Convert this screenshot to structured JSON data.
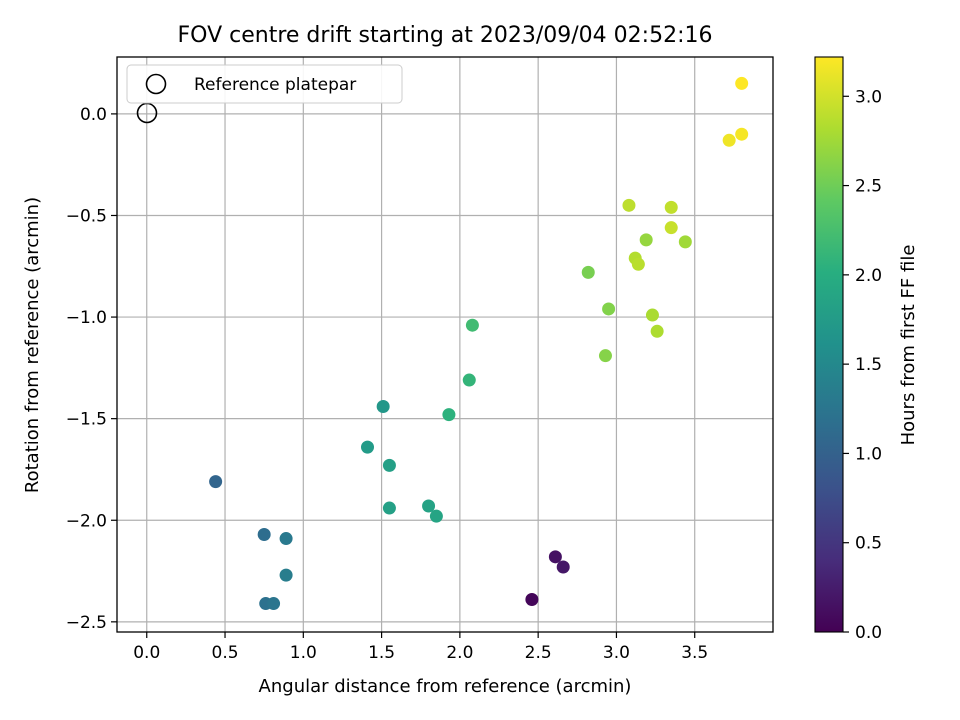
{
  "chart_data": {
    "type": "scatter",
    "title": "FOV centre drift starting at 2023/09/04 02:52:16",
    "xlabel": "Angular distance from reference (arcmin)",
    "ylabel": "Rotation from reference (arcmin)",
    "xlim": [
      -0.19,
      4.0
    ],
    "ylim": [
      -2.55,
      0.28
    ],
    "grid": true,
    "x_ticks": [
      0.0,
      0.5,
      1.0,
      1.5,
      2.0,
      2.5,
      3.0,
      3.5
    ],
    "x_tick_labels": [
      "0.0",
      "0.5",
      "1.0",
      "1.5",
      "2.0",
      "2.5",
      "3.0",
      "3.5"
    ],
    "y_ticks": [
      0.0,
      -0.5,
      -1.0,
      -1.5,
      -2.0,
      -2.5
    ],
    "y_tick_labels": [
      "0.0",
      "−0.5",
      "−1.0",
      "−1.5",
      "−2.0",
      "−2.5"
    ],
    "legend": {
      "location": "upper left",
      "entries": [
        {
          "label": "Reference platepar",
          "marker": "open-circle"
        }
      ]
    },
    "reference_point": {
      "x": 0.0,
      "y": 0.0
    },
    "colorbar": {
      "label": "Hours from first FF file",
      "colormap": "viridis",
      "range": [
        0.0,
        3.22
      ],
      "ticks": [
        0.0,
        0.5,
        1.0,
        1.5,
        2.0,
        2.5,
        3.0
      ],
      "tick_labels": [
        "0.0",
        "0.5",
        "1.0",
        "1.5",
        "2.0",
        "2.5",
        "3.0"
      ]
    },
    "points": [
      {
        "x": 2.46,
        "y": -2.39,
        "hours": 0.05
      },
      {
        "x": 2.61,
        "y": -2.18,
        "hours": 0.15
      },
      {
        "x": 2.66,
        "y": -2.23,
        "hours": 0.2
      },
      {
        "x": 0.44,
        "y": -1.81,
        "hours": 1.05
      },
      {
        "x": 0.75,
        "y": -2.07,
        "hours": 1.15
      },
      {
        "x": 0.76,
        "y": -2.41,
        "hours": 1.2
      },
      {
        "x": 0.81,
        "y": -2.41,
        "hours": 1.25
      },
      {
        "x": 0.89,
        "y": -2.09,
        "hours": 1.3
      },
      {
        "x": 0.89,
        "y": -2.27,
        "hours": 1.35
      },
      {
        "x": 1.51,
        "y": -1.44,
        "hours": 1.7
      },
      {
        "x": 1.41,
        "y": -1.64,
        "hours": 1.75
      },
      {
        "x": 1.55,
        "y": -1.73,
        "hours": 1.8
      },
      {
        "x": 1.55,
        "y": -1.94,
        "hours": 1.82
      },
      {
        "x": 1.8,
        "y": -1.93,
        "hours": 1.85
      },
      {
        "x": 1.85,
        "y": -1.98,
        "hours": 1.88
      },
      {
        "x": 1.93,
        "y": -1.48,
        "hours": 2.05
      },
      {
        "x": 2.06,
        "y": -1.31,
        "hours": 2.1
      },
      {
        "x": 2.08,
        "y": -1.04,
        "hours": 2.2
      },
      {
        "x": 2.82,
        "y": -0.78,
        "hours": 2.55
      },
      {
        "x": 2.95,
        "y": -0.96,
        "hours": 2.6
      },
      {
        "x": 2.93,
        "y": -1.19,
        "hours": 2.62
      },
      {
        "x": 3.19,
        "y": -0.62,
        "hours": 2.7
      },
      {
        "x": 3.44,
        "y": -0.63,
        "hours": 2.75
      },
      {
        "x": 3.23,
        "y": -0.99,
        "hours": 2.8
      },
      {
        "x": 3.26,
        "y": -1.07,
        "hours": 2.82
      },
      {
        "x": 3.12,
        "y": -0.71,
        "hours": 2.85
      },
      {
        "x": 3.14,
        "y": -0.74,
        "hours": 2.88
      },
      {
        "x": 3.08,
        "y": -0.45,
        "hours": 2.9
      },
      {
        "x": 3.35,
        "y": -0.46,
        "hours": 2.92
      },
      {
        "x": 3.35,
        "y": -0.56,
        "hours": 2.95
      },
      {
        "x": 3.72,
        "y": -0.13,
        "hours": 3.15
      },
      {
        "x": 3.8,
        "y": -0.1,
        "hours": 3.18
      },
      {
        "x": 3.8,
        "y": 0.15,
        "hours": 3.22
      }
    ]
  }
}
